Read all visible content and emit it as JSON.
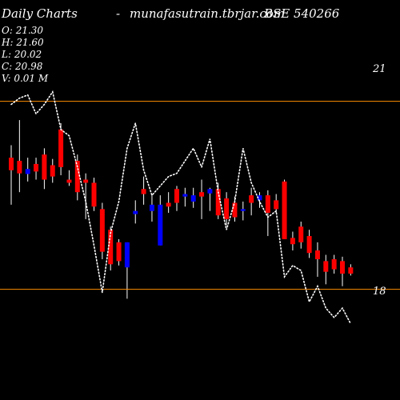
{
  "header": {
    "title": "Daily Charts",
    "dash": "-",
    "site": "munafasutrain.tbrjar.com",
    "symbol": "BSE 540266"
  },
  "ohlc": {
    "open": "O: 21.30",
    "high": "H: 21.60",
    "low": "L: 20.02",
    "close": "C: 20.98",
    "volume": "V: 0.01 M"
  },
  "levels": {
    "upper_label": "21",
    "lower_label": "18"
  },
  "colors": {
    "background": "#000000",
    "bearish": "#ff0000",
    "bullish": "#0000ff",
    "wick": "#ffffff",
    "level_line": "#ff8c00",
    "overlay_line": "#ffffff"
  },
  "chart_data": {
    "type": "candlestick",
    "title": "Daily Charts",
    "ylim": [
      17.0,
      21.85
    ],
    "horizontal_levels": [
      21,
      18
    ],
    "candles": [
      {
        "o": 20.1,
        "h": 20.3,
        "l": 19.35,
        "c": 19.9,
        "dir": "down"
      },
      {
        "o": 20.05,
        "h": 20.7,
        "l": 19.55,
        "c": 19.85,
        "dir": "down"
      },
      {
        "o": 19.92,
        "h": 20.1,
        "l": 19.72,
        "c": 19.84,
        "dir": "up"
      },
      {
        "o": 19.88,
        "h": 20.1,
        "l": 19.75,
        "c": 20.0,
        "dir": "down"
      },
      {
        "o": 20.15,
        "h": 20.25,
        "l": 19.6,
        "c": 19.75,
        "dir": "down"
      },
      {
        "o": 19.98,
        "h": 20.08,
        "l": 19.7,
        "c": 19.8,
        "dir": "down"
      },
      {
        "o": 20.55,
        "h": 20.65,
        "l": 19.82,
        "c": 19.95,
        "dir": "down"
      },
      {
        "o": 19.75,
        "h": 19.9,
        "l": 19.65,
        "c": 19.7,
        "dir": "down"
      },
      {
        "o": 20.05,
        "h": 20.15,
        "l": 19.42,
        "c": 19.55,
        "dir": "down"
      },
      {
        "o": 19.75,
        "h": 19.85,
        "l": 19.12,
        "c": 19.7,
        "dir": "down"
      },
      {
        "o": 19.7,
        "h": 19.78,
        "l": 19.25,
        "c": 19.32,
        "dir": "down"
      },
      {
        "o": 19.28,
        "h": 19.38,
        "l": 18.48,
        "c": 18.6,
        "dir": "down"
      },
      {
        "o": 18.95,
        "h": 19.0,
        "l": 18.3,
        "c": 18.4,
        "dir": "down"
      },
      {
        "o": 18.45,
        "h": 18.8,
        "l": 18.38,
        "c": 18.75,
        "dir": "down"
      },
      {
        "o": 18.35,
        "h": 18.75,
        "l": 17.85,
        "c": 18.75,
        "dir": "up"
      },
      {
        "o": 19.2,
        "h": 19.42,
        "l": 19.05,
        "c": 19.25,
        "dir": "up"
      },
      {
        "o": 19.6,
        "h": 19.8,
        "l": 19.35,
        "c": 19.52,
        "dir": "down"
      },
      {
        "o": 19.25,
        "h": 19.52,
        "l": 19.08,
        "c": 19.35,
        "dir": "up"
      },
      {
        "o": 19.35,
        "h": 19.5,
        "l": 18.7,
        "c": 18.7,
        "dir": "up"
      },
      {
        "o": 19.38,
        "h": 19.55,
        "l": 19.22,
        "c": 19.32,
        "dir": "down"
      },
      {
        "o": 19.6,
        "h": 19.65,
        "l": 19.25,
        "c": 19.38,
        "dir": "down"
      },
      {
        "o": 19.52,
        "h": 19.62,
        "l": 19.32,
        "c": 19.48,
        "dir": "up"
      },
      {
        "o": 19.5,
        "h": 19.62,
        "l": 19.3,
        "c": 19.4,
        "dir": "up"
      },
      {
        "o": 19.55,
        "h": 19.75,
        "l": 19.12,
        "c": 19.48,
        "dir": "down"
      },
      {
        "o": 19.53,
        "h": 19.62,
        "l": 19.25,
        "c": 19.6,
        "dir": "up"
      },
      {
        "o": 19.6,
        "h": 19.7,
        "l": 19.12,
        "c": 19.18,
        "dir": "down"
      },
      {
        "o": 19.45,
        "h": 19.55,
        "l": 19.02,
        "c": 19.12,
        "dir": "down"
      },
      {
        "o": 19.38,
        "h": 19.48,
        "l": 19.08,
        "c": 19.15,
        "dir": "down"
      },
      {
        "o": 19.28,
        "h": 19.4,
        "l": 19.1,
        "c": 19.25,
        "dir": "up"
      },
      {
        "o": 19.5,
        "h": 19.62,
        "l": 19.18,
        "c": 19.38,
        "dir": "down"
      },
      {
        "o": 19.5,
        "h": 19.55,
        "l": 19.3,
        "c": 19.42,
        "dir": "up"
      },
      {
        "o": 19.5,
        "h": 19.58,
        "l": 18.85,
        "c": 19.22,
        "dir": "down"
      },
      {
        "o": 19.42,
        "h": 19.52,
        "l": 19.22,
        "c": 19.28,
        "dir": "down"
      },
      {
        "o": 19.72,
        "h": 19.75,
        "l": 18.8,
        "c": 18.8,
        "dir": "down"
      },
      {
        "o": 18.82,
        "h": 18.92,
        "l": 18.62,
        "c": 18.72,
        "dir": "down"
      },
      {
        "o": 19.0,
        "h": 19.08,
        "l": 18.65,
        "c": 18.75,
        "dir": "down"
      },
      {
        "o": 18.85,
        "h": 18.95,
        "l": 18.5,
        "c": 18.58,
        "dir": "down"
      },
      {
        "o": 18.62,
        "h": 18.75,
        "l": 18.2,
        "c": 18.48,
        "dir": "down"
      },
      {
        "o": 18.45,
        "h": 18.55,
        "l": 18.08,
        "c": 18.28,
        "dir": "down"
      },
      {
        "o": 18.48,
        "h": 18.55,
        "l": 18.25,
        "c": 18.32,
        "dir": "down"
      },
      {
        "o": 18.45,
        "h": 18.52,
        "l": 18.05,
        "c": 18.25,
        "dir": "down"
      },
      {
        "o": 18.35,
        "h": 18.4,
        "l": 18.22,
        "c": 18.25,
        "dir": "down"
      }
    ],
    "overlay_line": [
      20.95,
      21.05,
      21.1,
      20.8,
      20.95,
      21.15,
      20.55,
      20.45,
      19.95,
      19.4,
      18.7,
      17.95,
      18.9,
      19.4,
      20.25,
      20.65,
      19.9,
      19.5,
      19.65,
      19.8,
      19.85,
      20.05,
      20.25,
      19.95,
      20.4,
      19.55,
      18.95,
      19.4,
      20.25,
      19.7,
      19.4,
      19.15,
      19.25,
      18.2,
      18.38,
      18.3,
      17.8,
      18.05,
      17.7,
      17.55,
      17.7,
      17.45
    ]
  }
}
